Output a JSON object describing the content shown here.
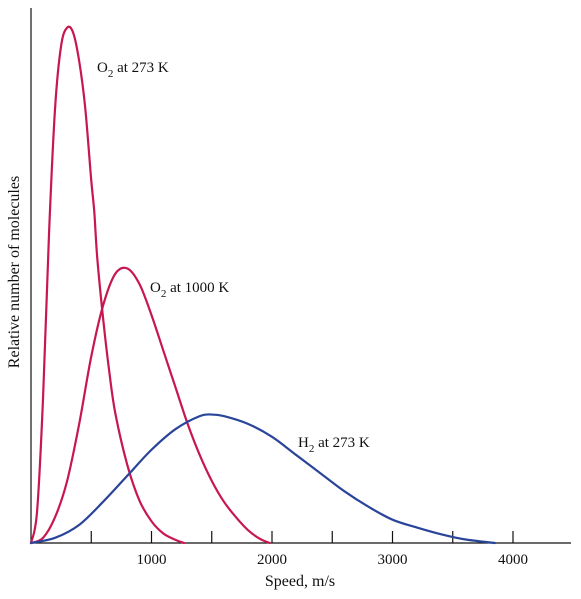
{
  "chart_data": {
    "type": "line",
    "title": "",
    "xlabel": "Speed, m/s",
    "ylabel": "Relative number of molecules",
    "xlim": [
      0,
      4500
    ],
    "ylim": [
      0,
      1
    ],
    "x_ticks": [
      1000,
      2000,
      3000,
      4000
    ],
    "x_minor_ticks": [
      500,
      1500,
      2500,
      3500
    ],
    "x_tick_labels": [
      "1000",
      "2000",
      "3000",
      "4000"
    ],
    "y_ticks_labeled": false,
    "grid": false,
    "legend": "none",
    "series": [
      {
        "id": "o2_273",
        "label_main": "O",
        "label_sub": "2",
        "label_rest": " at 273 K",
        "color": "#c8174f",
        "x": [
          0,
          50,
          100,
          150,
          200,
          250,
          300,
          350,
          400,
          450,
          500,
          525,
          550,
          600,
          650,
          700,
          800,
          900,
          1000,
          1100,
          1200,
          1270
        ],
        "y": [
          0,
          0.06,
          0.28,
          0.6,
          0.84,
          0.96,
          0.995,
          0.985,
          0.93,
          0.84,
          0.7,
          0.64,
          0.55,
          0.43,
          0.33,
          0.25,
          0.15,
          0.082,
          0.042,
          0.018,
          0.006,
          0
        ]
      },
      {
        "id": "o2_1000",
        "label_main": "O",
        "label_sub": "2",
        "label_rest": " at 1000 K",
        "color": "#c8174f",
        "x": [
          0,
          100,
          200,
          300,
          400,
          500,
          600,
          700,
          800,
          900,
          1000,
          1100,
          1200,
          1300,
          1400,
          1500,
          1600,
          1700,
          1800,
          1900,
          1980
        ],
        "y": [
          0,
          0.01,
          0.05,
          0.12,
          0.23,
          0.36,
          0.46,
          0.52,
          0.53,
          0.5,
          0.44,
          0.37,
          0.3,
          0.23,
          0.17,
          0.12,
          0.08,
          0.05,
          0.025,
          0.008,
          0
        ]
      },
      {
        "id": "h2_273",
        "label_main": "H",
        "label_sub": "2",
        "label_rest": " at 273 K",
        "color": "#2a449a",
        "x": [
          0,
          200,
          400,
          600,
          800,
          1000,
          1200,
          1400,
          1500,
          1600,
          1800,
          2000,
          2200,
          2400,
          2600,
          2800,
          3000,
          3200,
          3400,
          3600,
          3850
        ],
        "y": [
          0,
          0.01,
          0.035,
          0.08,
          0.13,
          0.18,
          0.22,
          0.245,
          0.248,
          0.245,
          0.23,
          0.205,
          0.17,
          0.135,
          0.1,
          0.07,
          0.045,
          0.03,
          0.017,
          0.007,
          0
        ]
      }
    ]
  }
}
